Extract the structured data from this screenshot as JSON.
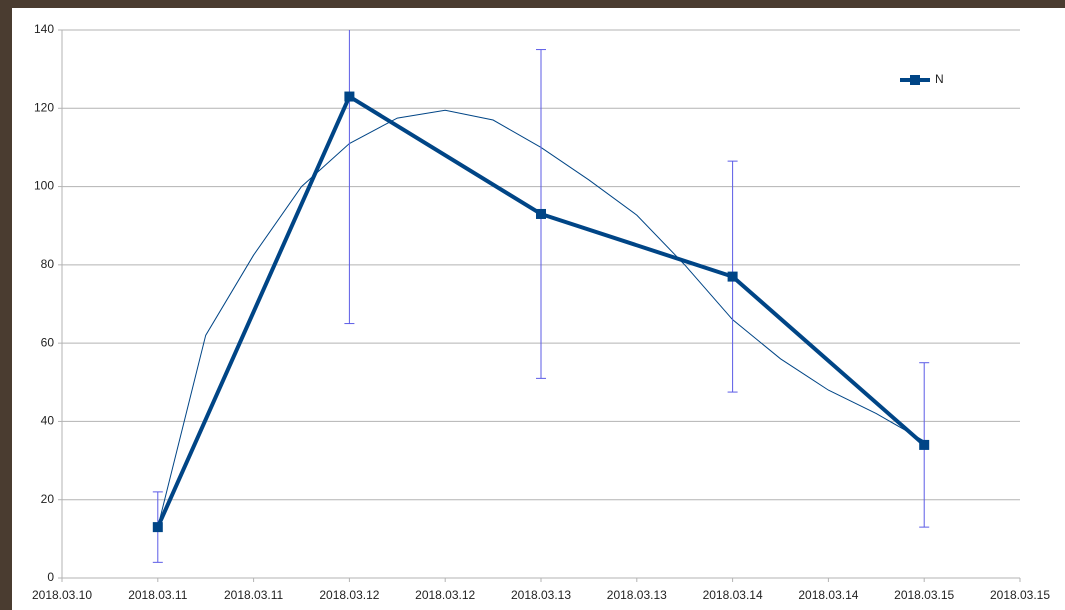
{
  "chart_data": {
    "type": "line",
    "x": [
      "2018.03.11",
      "2018.03.12",
      "2018.03.13",
      "2018.03.14",
      "2018.03.15"
    ],
    "series": [
      {
        "name": "N",
        "color": "#004586",
        "values": [
          13,
          123,
          93,
          77,
          34
        ],
        "errors": [
          9,
          58,
          42,
          29.5,
          21
        ],
        "error_color": "#5b5be6"
      }
    ],
    "trendline": {
      "color": "#004586",
      "x": [
        "2018-03-11T00:00",
        "2018-03-11T06:00",
        "2018-03-11T12:00",
        "2018-03-11T18:00",
        "2018-03-12T00:00",
        "2018-03-12T06:00",
        "2018-03-12T12:00",
        "2018-03-12T18:00",
        "2018-03-13T00:00",
        "2018-03-13T06:00",
        "2018-03-13T12:00",
        "2018-03-13T18:00",
        "2018-03-14T00:00",
        "2018-03-14T06:00",
        "2018-03-14T12:00",
        "2018-03-14T18:00",
        "2018-03-15T00:00"
      ],
      "values": [
        13,
        62,
        82.5,
        100,
        111,
        117.5,
        119.5,
        117,
        110,
        101.7,
        92.7,
        80,
        66,
        56,
        48,
        42,
        35
      ]
    },
    "xlim": [
      "2018-03-10T12:00",
      "2018-03-15T12:00"
    ],
    "xticks": [
      {
        "value": "2018-03-10T12:00",
        "label": "2018.03.10"
      },
      {
        "value": "2018-03-11T00:00",
        "label": "2018.03.11"
      },
      {
        "value": "2018-03-11T12:00",
        "label": "2018.03.11"
      },
      {
        "value": "2018-03-12T00:00",
        "label": "2018.03.12"
      },
      {
        "value": "2018-03-12T12:00",
        "label": "2018.03.12"
      },
      {
        "value": "2018-03-13T00:00",
        "label": "2018.03.13"
      },
      {
        "value": "2018-03-13T12:00",
        "label": "2018.03.13"
      },
      {
        "value": "2018-03-14T00:00",
        "label": "2018.03.14"
      },
      {
        "value": "2018-03-14T12:00",
        "label": "2018.03.14"
      },
      {
        "value": "2018-03-15T00:00",
        "label": "2018.03.15"
      },
      {
        "value": "2018-03-15T12:00",
        "label": "2018.03.15"
      }
    ],
    "ylim": [
      0,
      140
    ],
    "yticks": [
      0,
      20,
      40,
      60,
      80,
      100,
      120,
      140
    ],
    "grid": true,
    "legend": "top-right"
  }
}
